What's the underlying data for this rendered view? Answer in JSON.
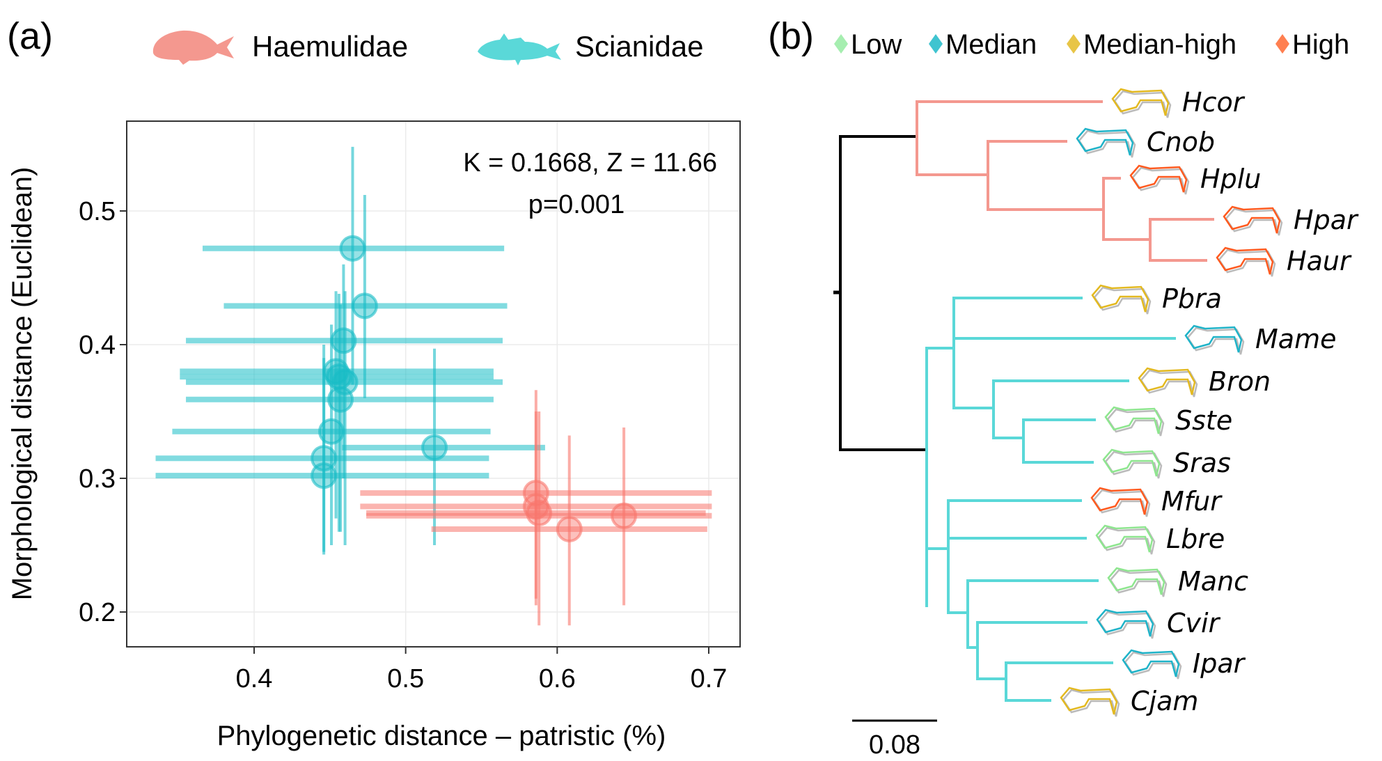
{
  "chart_data": [
    {
      "panel_label": "(a)",
      "type": "scatter",
      "xlabel": "Phylogenetic distance – patristic (%)",
      "ylabel": "Morphological distance (Euclidean)",
      "xlim": [
        0.32,
        0.72
      ],
      "ylim": [
        0.18,
        0.56
      ],
      "xticks": [
        "0.4",
        "0.5",
        "0.6",
        "0.7"
      ],
      "xtick_values": [
        0.4,
        0.5,
        0.6,
        0.7
      ],
      "yticks": [
        "0.2",
        "0.3",
        "0.4",
        "0.5"
      ],
      "ytick_values": [
        0.2,
        0.3,
        0.4,
        0.5
      ],
      "grid": true,
      "annotation": [
        "K = 0.1668, Z = 11.66",
        "p=0.001"
      ],
      "legend": {
        "placement": "top",
        "entries": [
          {
            "name": "Haemulidae",
            "color": "#f4988f",
            "icon": "fish-silhouette-icon"
          },
          {
            "name": "Scianidae",
            "color": "#5ad8d8",
            "icon": "fish-silhouette-icon"
          }
        ]
      },
      "series": [
        {
          "name": "Scianidae",
          "color": "#19bdc6",
          "points": [
            {
              "x": 0.465,
              "y": 0.472,
              "xmin": 0.366,
              "xmax": 0.565,
              "ymin": 0.37,
              "ymax": 0.548
            },
            {
              "x": 0.473,
              "y": 0.429,
              "xmin": 0.38,
              "xmax": 0.567,
              "ymin": 0.36,
              "ymax": 0.512
            },
            {
              "x": 0.459,
              "y": 0.403,
              "xmin": 0.355,
              "xmax": 0.564,
              "ymin": 0.3,
              "ymax": 0.46
            },
            {
              "x": 0.454,
              "y": 0.38,
              "xmin": 0.351,
              "xmax": 0.558,
              "ymin": 0.27,
              "ymax": 0.44
            },
            {
              "x": 0.456,
              "y": 0.376,
              "xmin": 0.351,
              "xmax": 0.558,
              "ymin": 0.26,
              "ymax": 0.438
            },
            {
              "x": 0.46,
              "y": 0.372,
              "xmin": 0.355,
              "xmax": 0.564,
              "ymin": 0.25,
              "ymax": 0.44
            },
            {
              "x": 0.457,
              "y": 0.359,
              "xmin": 0.355,
              "xmax": 0.558,
              "ymin": 0.26,
              "ymax": 0.43
            },
            {
              "x": 0.451,
              "y": 0.335,
              "xmin": 0.346,
              "xmax": 0.556,
              "ymin": 0.25,
              "ymax": 0.415
            },
            {
              "x": 0.519,
              "y": 0.323,
              "xmin": 0.458,
              "xmax": 0.592,
              "ymin": 0.25,
              "ymax": 0.397
            },
            {
              "x": 0.446,
              "y": 0.315,
              "xmin": 0.335,
              "xmax": 0.555,
              "ymin": 0.245,
              "ymax": 0.4
            },
            {
              "x": 0.446,
              "y": 0.302,
              "xmin": 0.335,
              "xmax": 0.555,
              "ymin": 0.243,
              "ymax": 0.39
            }
          ]
        },
        {
          "name": "Haemulidae",
          "color": "#f8766d",
          "points": [
            {
              "x": 0.586,
              "y": 0.289,
              "xmin": 0.47,
              "xmax": 0.702,
              "ymin": 0.21,
              "ymax": 0.366
            },
            {
              "x": 0.586,
              "y": 0.279,
              "xmin": 0.47,
              "xmax": 0.702,
              "ymin": 0.205,
              "ymax": 0.35
            },
            {
              "x": 0.588,
              "y": 0.274,
              "xmin": 0.474,
              "xmax": 0.698,
              "ymin": 0.19,
              "ymax": 0.35
            },
            {
              "x": 0.608,
              "y": 0.262,
              "xmin": 0.517,
              "xmax": 0.699,
              "ymin": 0.19,
              "ymax": 0.332
            },
            {
              "x": 0.644,
              "y": 0.272,
              "xmin": 0.474,
              "xmax": 0.702,
              "ymin": 0.205,
              "ymax": 0.338
            }
          ]
        }
      ]
    },
    {
      "panel_label": "(b)",
      "type": "tree",
      "title": "",
      "legend": {
        "placement": "top",
        "entries": [
          {
            "name": "Low",
            "color": "#a6eeb0"
          },
          {
            "name": "Median",
            "color": "#3fc4d0"
          },
          {
            "name": "Median-high",
            "color": "#e8c547"
          },
          {
            "name": "High",
            "color": "#ff7f50"
          }
        ]
      },
      "scale_bar": "0.08",
      "clades": [
        {
          "name": "Haemulidae",
          "color": "#f4988f"
        },
        {
          "name": "Scianidae",
          "color": "#5ad8d8"
        }
      ],
      "tips": [
        {
          "label": "Hcor",
          "category": "Median-high"
        },
        {
          "label": "Cnob",
          "category": "Median"
        },
        {
          "label": "Hplu",
          "category": "High"
        },
        {
          "label": "Hpar",
          "category": "High"
        },
        {
          "label": "Haur",
          "category": "High"
        },
        {
          "label": "Pbra",
          "category": "Median-high"
        },
        {
          "label": "Mame",
          "category": "Median"
        },
        {
          "label": "Bron",
          "category": "Median-high"
        },
        {
          "label": "Sste",
          "category": "Low"
        },
        {
          "label": "Sras",
          "category": "Low"
        },
        {
          "label": "Mfur",
          "category": "High"
        },
        {
          "label": "Lbre",
          "category": "Low"
        },
        {
          "label": "Manc",
          "category": "Low"
        },
        {
          "label": "Cvir",
          "category": "Median"
        },
        {
          "label": "Ipar",
          "category": "Median"
        },
        {
          "label": "Cjam",
          "category": "Median-high"
        }
      ]
    }
  ]
}
